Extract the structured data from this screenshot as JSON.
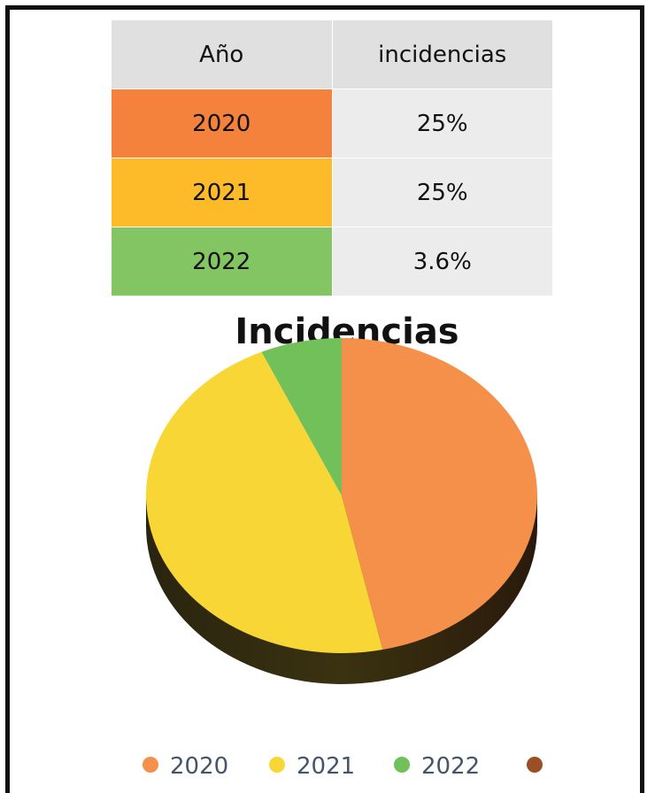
{
  "table": {
    "header": [
      "Año",
      "incidencias"
    ],
    "rows": [
      [
        "2020",
        "25%"
      ],
      [
        "2021",
        "25%"
      ],
      [
        "2022",
        "3.6%"
      ]
    ]
  },
  "chart_data": {
    "type": "pie",
    "title": "Incidencias",
    "categories": [
      "2020",
      "2021",
      "2022"
    ],
    "values": [
      25,
      25,
      3.6
    ],
    "colors": [
      "#f5904a",
      "#f8d635",
      "#72c05a"
    ],
    "legend": "bottom"
  }
}
